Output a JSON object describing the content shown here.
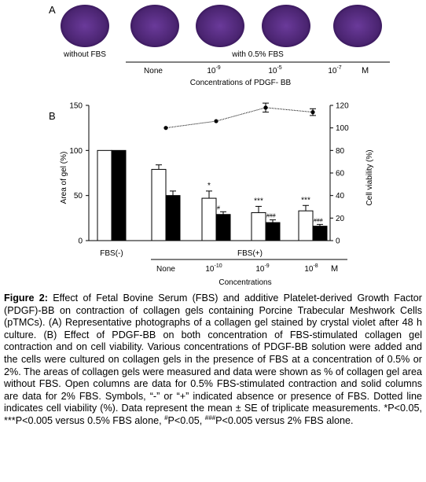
{
  "panel_a": {
    "label": "A",
    "label_without": "without FBS",
    "label_with": "with 0.5% FBS",
    "conditions": [
      "None",
      "10",
      "10",
      "10"
    ],
    "condition_exponents": [
      "",
      "-9",
      "-5",
      "-7"
    ],
    "unit": "M",
    "axis_title": "Concentrations of PDGF- BB",
    "gel_color": "#4a2470"
  },
  "panel_b": {
    "label": "B",
    "left_axis_label": "Area of gel (%)",
    "right_axis_label": "Cell viability (%)",
    "fbs_minus": "FBS(-)",
    "fbs_plus": "FBS(+)",
    "group_labels": [
      "None",
      "10",
      "10",
      "10"
    ],
    "group_exponents": [
      "",
      "-10",
      "-9",
      "-8"
    ],
    "unit": "M",
    "x_title": "Concentrations",
    "left_ticks": [
      "0",
      "50",
      "100",
      "150"
    ],
    "right_ticks": [
      "0",
      "20",
      "40",
      "60",
      "80",
      "100",
      "120"
    ]
  },
  "chart_data": {
    "type": "bar",
    "categories": [
      "FBS(-)",
      "None",
      "10-10",
      "10-9",
      "10-8"
    ],
    "series": [
      {
        "values": [
          100,
          79,
          47,
          31,
          33
        ],
        "errors": [
          0,
          5,
          8,
          7,
          6
        ],
        "fill": "open"
      },
      {
        "values": [
          100,
          50,
          29,
          20,
          16
        ],
        "errors": [
          0,
          5,
          3,
          3,
          2
        ],
        "fill": "solid"
      }
    ],
    "open_marks": [
      "",
      "",
      "*",
      "***",
      "***"
    ],
    "solid_marks": [
      "",
      "",
      "#",
      "###",
      "###"
    ],
    "viability": {
      "categories": [
        "None",
        "10-10",
        "10-9",
        "10-8"
      ],
      "values": [
        100,
        106,
        118,
        114
      ],
      "errors": [
        0,
        0,
        4,
        3
      ]
    },
    "ylim": [
      0,
      150
    ],
    "y2lim": [
      0,
      120
    ],
    "xlabel": "Concentrations",
    "ylabel": "Area of gel (%)",
    "y2label": "Cell viability (%)"
  },
  "caption": {
    "heading": "Figure 2:",
    "text1": " Effect of Fetal Bovine Serum (FBS) and additive Platelet-derived Growth Factor (PDGF)-BB on contraction of collagen gels containing Porcine Trabecular Meshwork Cells (pTMCs).  (A) Representative photographs of a collagen gel stained by crystal violet after 48 h culture.  (B) Effect of PDGF-BB on both concentration of FBS-stimulated collagen gel contraction and on cell viability. Various concentrations of PDGF-BB solution were added and the cells were cultured on collagen gels in the presence of FBS at a concentration of 0.5% or 2%.  The areas of collagen gels were measured and data were shown as % of collagen gel area without FBS.  Open columns are data for 0.5% FBS-stimulated contraction and solid columns are data for 2% FBS.  Symbols, “-” or “+” indicated absence or presence of FBS.  Dotted line indicates cell viability (%).  Data represent the mean ± SE of triplicate measurements.  *P<0.05, ***P<0.005 versus 0.5% FBS alone, ",
    "hash1": "#",
    "text2": "P<0.05, ",
    "hash3": "###",
    "text3": "P<0.005 versus 2% FBS alone."
  }
}
